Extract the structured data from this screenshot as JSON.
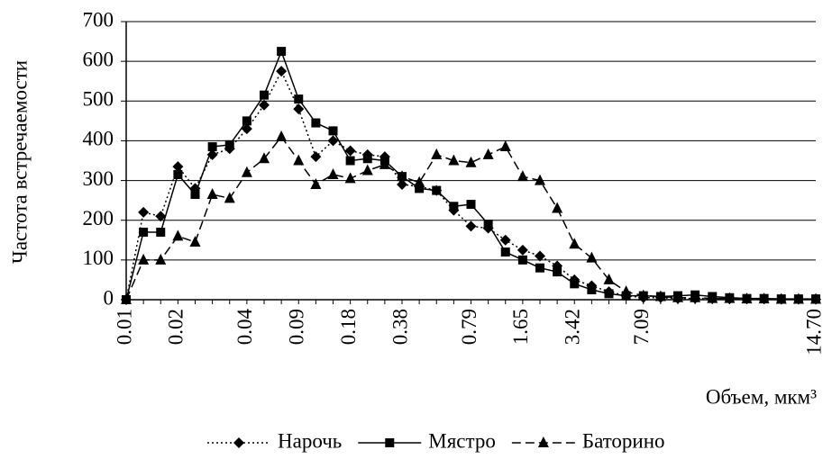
{
  "chart_data": {
    "type": "line",
    "y_label": "Частота встречаемости",
    "x_label": "Объем, мкм³",
    "categories": [
      "0.01",
      null,
      null,
      "0.02",
      null,
      null,
      null,
      "0.04",
      null,
      null,
      "0.09",
      null,
      null,
      "0.18",
      null,
      null,
      "0.38",
      null,
      null,
      null,
      "0.79",
      null,
      null,
      "1.65",
      null,
      null,
      "3.42",
      null,
      null,
      null,
      "7.09",
      null,
      null,
      null,
      null,
      null,
      null,
      null,
      null,
      null,
      "14.70"
    ],
    "series": [
      {
        "name": "Нарочь",
        "color": "#000000",
        "dash": "dotted",
        "marker": "diamond",
        "values": [
          0,
          220,
          210,
          335,
          280,
          365,
          380,
          430,
          490,
          575,
          480,
          360,
          400,
          375,
          365,
          360,
          290,
          285,
          275,
          225,
          185,
          180,
          150,
          125,
          110,
          85,
          50,
          35,
          20,
          10,
          5,
          5,
          3,
          3,
          3,
          2,
          2,
          2,
          1,
          1,
          1
        ]
      },
      {
        "name": "Мястро",
        "color": "#000000",
        "dash": "solid",
        "marker": "square",
        "values": [
          0,
          170,
          170,
          315,
          265,
          385,
          390,
          450,
          515,
          625,
          505,
          445,
          425,
          350,
          355,
          350,
          310,
          280,
          275,
          235,
          240,
          190,
          120,
          100,
          80,
          70,
          40,
          25,
          15,
          10,
          10,
          8,
          10,
          12,
          8,
          5,
          3,
          3,
          2,
          2,
          2
        ]
      },
      {
        "name": "Баторино",
        "color": "#000000",
        "dash": "dashed",
        "marker": "triangle",
        "values": [
          0,
          100,
          100,
          160,
          145,
          265,
          255,
          320,
          355,
          410,
          350,
          290,
          315,
          305,
          325,
          340,
          310,
          295,
          365,
          350,
          345,
          365,
          385,
          310,
          300,
          230,
          140,
          105,
          50,
          20,
          10,
          8,
          5,
          5,
          3,
          3,
          2,
          2,
          1,
          1,
          1
        ]
      }
    ],
    "ylim": [
      0,
      700
    ],
    "yticks": [
      0,
      100,
      200,
      300,
      400,
      500,
      600,
      700
    ],
    "grid": true,
    "legend": "bottom"
  }
}
